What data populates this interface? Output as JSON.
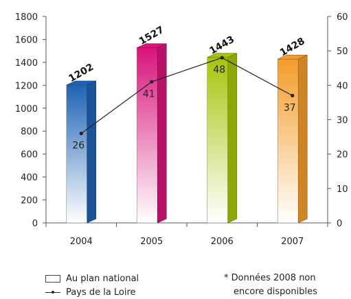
{
  "chart_data": {
    "type": "bar",
    "categories": [
      "2004",
      "2005",
      "2006",
      "2007"
    ],
    "series": [
      {
        "name": "Au plan national",
        "type": "bar",
        "axis": "left",
        "values": [
          1202,
          1527,
          1443,
          1428
        ],
        "colors": [
          "#1f63b5",
          "#d8147a",
          "#a6c40d",
          "#f39c2b"
        ]
      },
      {
        "name": "Pays de la Loire",
        "type": "line",
        "axis": "right",
        "values": [
          26,
          41,
          48,
          37
        ],
        "color": "#222222"
      }
    ],
    "bar_labels": [
      "1202",
      "1527",
      "1443",
      "1428"
    ],
    "line_labels": [
      "26",
      "41",
      "48",
      "37"
    ],
    "ylim_left": [
      0,
      1800
    ],
    "yticks_left": [
      "0",
      "200",
      "400",
      "600",
      "800",
      "1000",
      "1200",
      "1400",
      "1600",
      "1800"
    ],
    "ylim_right": [
      0,
      60
    ],
    "yticks_right": [
      "0",
      "10",
      "20",
      "30",
      "40",
      "50",
      "60"
    ],
    "legend_position": "bottom-left",
    "note": [
      "* Données 2008 non",
      "encore disponibles"
    ]
  },
  "legend": {
    "bar_label": "Au plan national",
    "line_label": "Pays de la Loire"
  },
  "note": {
    "line1": "* Données 2008 non",
    "line2": "encore disponibles"
  }
}
